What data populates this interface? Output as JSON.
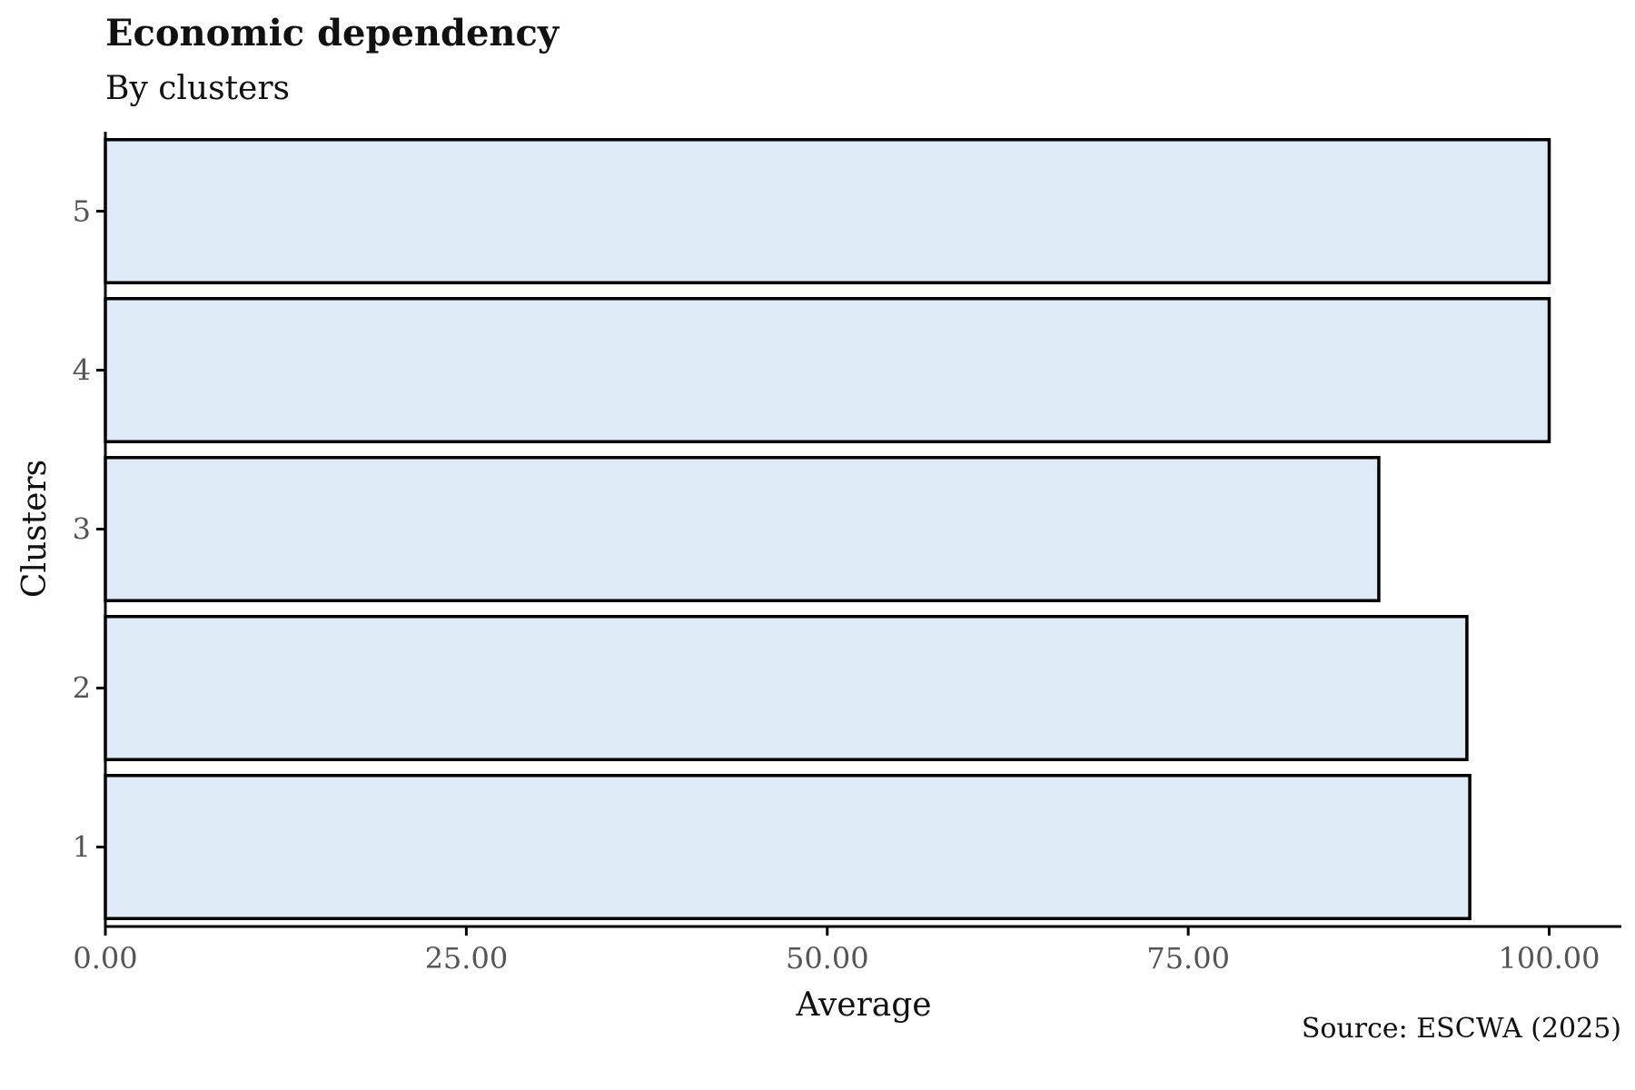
{
  "chart_data": {
    "type": "bar",
    "orientation": "horizontal",
    "title": "Economic dependency",
    "subtitle": "By clusters",
    "xlabel": "Average",
    "ylabel": "Clusters",
    "caption": "Source: ESCWA (2025)",
    "categories": [
      "1",
      "2",
      "3",
      "4",
      "5"
    ],
    "values": [
      94.5,
      94.3,
      88.2,
      100.0,
      100.0
    ],
    "xlim": [
      0,
      105
    ],
    "xticks": [
      "0.00",
      "25.00",
      "50.00",
      "75.00",
      "100.00"
    ],
    "xtick_values": [
      0,
      25,
      50,
      75,
      100
    ],
    "grid": false,
    "legend": "none",
    "bar_fill": "#deeaf6",
    "bar_stroke": "#000000"
  }
}
